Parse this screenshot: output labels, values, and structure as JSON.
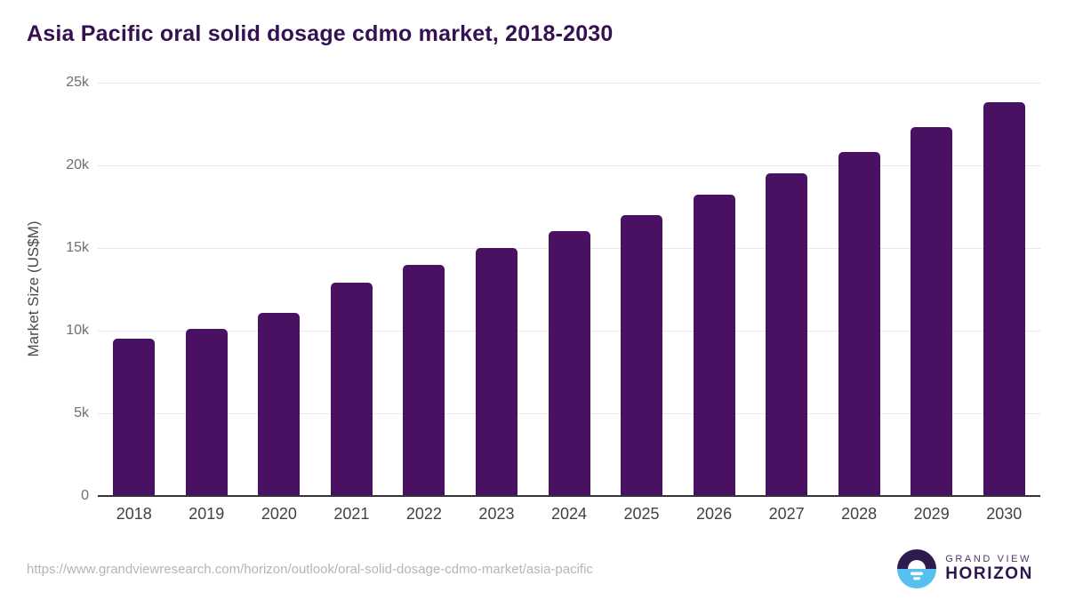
{
  "title": "Asia Pacific oral solid dosage cdmo market, 2018-2030",
  "chart_data": {
    "type": "bar",
    "title": "Asia Pacific oral solid dosage cdmo market, 2018-2030",
    "xlabel": "",
    "ylabel": "Market Size (US$M)",
    "categories": [
      "2018",
      "2019",
      "2020",
      "2021",
      "2022",
      "2023",
      "2024",
      "2025",
      "2026",
      "2027",
      "2028",
      "2029",
      "2030"
    ],
    "values": [
      9500,
      10100,
      11100,
      12900,
      14000,
      15000,
      16000,
      17000,
      18200,
      19500,
      20800,
      22300,
      23800
    ],
    "ylim": [
      0,
      25000
    ],
    "y_ticks": [
      {
        "value": 0,
        "label": "0"
      },
      {
        "value": 5000,
        "label": "5k"
      },
      {
        "value": 10000,
        "label": "10k"
      },
      {
        "value": 15000,
        "label": "15k"
      },
      {
        "value": 20000,
        "label": "20k"
      },
      {
        "value": 25000,
        "label": "25k"
      }
    ],
    "grid": true,
    "legend": false,
    "bar_color": "#4a1061"
  },
  "footer": {
    "source_url": "https://www.grandviewresearch.com/horizon/outlook/oral-solid-dosage-cdmo-market/asia-pacific",
    "logo": {
      "line1": "GRAND VIEW",
      "line2": "HORIZON"
    }
  },
  "colors": {
    "bar": "#4a1061",
    "title_text": "#351152",
    "gridline": "#e7e7e7",
    "axis_line": "#37333a",
    "y_tick_text": "#6f6f6f",
    "x_label_text": "#424242",
    "url_text": "#b5b5b5",
    "logo_purple": "#2d1b4e",
    "logo_blue": "#56c0f0"
  }
}
